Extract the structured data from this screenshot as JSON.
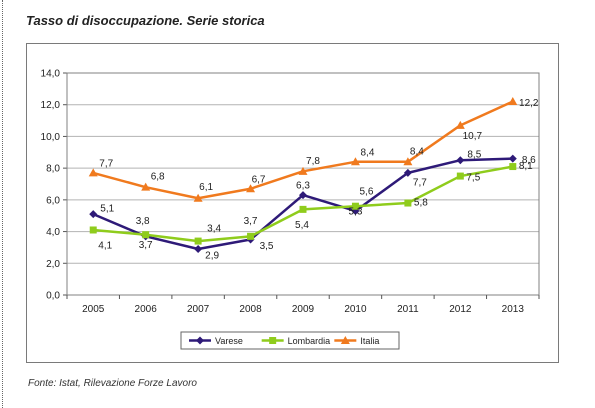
{
  "header": {
    "title": "Tasso di disoccupazione. Serie storica"
  },
  "footer": {
    "source": "Fonte: Istat, Rilevazione Forze Lavoro"
  },
  "chart_data": {
    "type": "line",
    "title": "",
    "xlabel": "",
    "ylabel": "",
    "categories": [
      "2005",
      "2006",
      "2007",
      "2008",
      "2009",
      "2010",
      "2011",
      "2012",
      "2013"
    ],
    "ylim": [
      0,
      14
    ],
    "y_ticks": [
      "0,0",
      "2,0",
      "4,0",
      "6,0",
      "8,0",
      "10,0",
      "12,0",
      "14,0"
    ],
    "grid": true,
    "legend_position": "bottom",
    "series": [
      {
        "name": "Varese",
        "color": "#2e1a78",
        "marker": "diamond",
        "values": [
          5.1,
          3.7,
          2.9,
          3.5,
          6.3,
          5.3,
          7.7,
          8.5,
          8.6
        ],
        "labels": [
          "5,1",
          "3,7",
          "2,9",
          "3,5",
          "6,3",
          "5,3",
          "7,7",
          "8,5",
          "8,6"
        ]
      },
      {
        "name": "Lombardia",
        "color": "#8fcc1c",
        "marker": "square",
        "values": [
          4.1,
          3.8,
          3.4,
          3.7,
          5.4,
          5.6,
          5.8,
          7.5,
          8.1
        ],
        "labels": [
          "4,1",
          "3,8",
          "3,4",
          "3,7",
          "5,4",
          "5,6",
          "5,8",
          "7,5",
          "8,1"
        ]
      },
      {
        "name": "Italia",
        "color": "#f07a1e",
        "marker": "triangle",
        "values": [
          7.7,
          6.8,
          6.1,
          6.7,
          7.8,
          8.4,
          8.4,
          10.7,
          12.2
        ],
        "labels": [
          "7,7",
          "6,8",
          "6,1",
          "6,7",
          "7,8",
          "8,4",
          "8,4",
          "10,7",
          "12,2"
        ]
      }
    ]
  }
}
